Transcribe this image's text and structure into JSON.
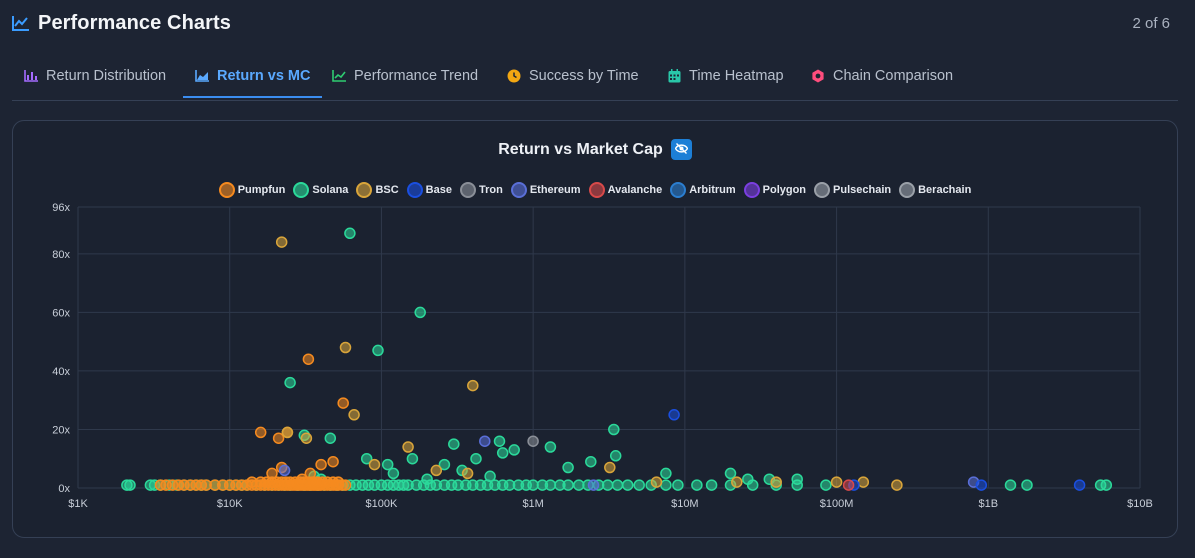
{
  "header": {
    "title": "Performance Charts",
    "page_count": "2 of 6",
    "icon": "trend-line-icon",
    "icon_color": "#3b9cff"
  },
  "tabs": [
    {
      "label": "Return Distribution",
      "icon": "bar-chart-icon",
      "color": "#a46bff",
      "active": false
    },
    {
      "label": "Return vs MC",
      "icon": "area-chart-icon",
      "color": "#5aa9ff",
      "active": true
    },
    {
      "label": "Performance Trend",
      "icon": "line-chart-icon",
      "color": "#2ecc71",
      "active": false
    },
    {
      "label": "Success by Time",
      "icon": "clock-icon",
      "color": "#f3a712",
      "active": false
    },
    {
      "label": "Time Heatmap",
      "icon": "calendar-icon",
      "color": "#29c7a8",
      "active": false
    },
    {
      "label": "Chain Comparison",
      "icon": "cog-icon",
      "color": "#ff4d7d",
      "active": false
    }
  ],
  "chart": {
    "title": "Return vs Market Cap",
    "toggle_icon": "eye-off-icon",
    "toggle_color": "#1d7fd6"
  },
  "legend": [
    {
      "name": "Pumpfun",
      "color": "#f58a1f"
    },
    {
      "name": "Solana",
      "color": "#2bd99a"
    },
    {
      "name": "BSC",
      "color": "#d9a53a"
    },
    {
      "name": "Base",
      "color": "#1a4fe0"
    },
    {
      "name": "Tron",
      "color": "#8a8f98"
    },
    {
      "name": "Ethereum",
      "color": "#5a6fd8"
    },
    {
      "name": "Avalanche",
      "color": "#d84a4a"
    },
    {
      "name": "Arbitrum",
      "color": "#2b7ed0"
    },
    {
      "name": "Polygon",
      "color": "#7b3fe0"
    },
    {
      "name": "Pulsechain",
      "color": "#9aa0a8"
    },
    {
      "name": "Berachain",
      "color": "#9aa0a8"
    }
  ],
  "chart_data": {
    "type": "scatter",
    "title": "Return vs Market Cap",
    "x_scale": "log",
    "xlim": [
      1000,
      10000000000
    ],
    "ylim": [
      0,
      96
    ],
    "x_ticks": [
      {
        "value": 1000,
        "label": "$1K"
      },
      {
        "value": 10000,
        "label": "$10K"
      },
      {
        "value": 100000,
        "label": "$100K"
      },
      {
        "value": 1000000,
        "label": "$1M"
      },
      {
        "value": 10000000,
        "label": "$10M"
      },
      {
        "value": 100000000,
        "label": "$100M"
      },
      {
        "value": 1000000000,
        "label": "$1B"
      },
      {
        "value": 10000000000,
        "label": "$10B"
      }
    ],
    "y_ticks": [
      {
        "value": 0,
        "label": "0x"
      },
      {
        "value": 20,
        "label": "20x"
      },
      {
        "value": 40,
        "label": "40x"
      },
      {
        "value": 60,
        "label": "60x"
      },
      {
        "value": 80,
        "label": "80x"
      },
      {
        "value": 96,
        "label": "96x"
      }
    ],
    "grid": true,
    "legend_position": "top-center",
    "series": [
      {
        "name": "Pumpfun",
        "color": "#f58a1f",
        "x": [
          3500,
          3800,
          4200,
          4600,
          5000,
          5500,
          6000,
          6500,
          7000,
          8000,
          9000,
          10000,
          11000,
          12000,
          13000,
          14000,
          15000,
          16000,
          17000,
          18000,
          19000,
          20000,
          21000,
          22000,
          23000,
          24000,
          25000,
          26000,
          27000,
          28000,
          29000,
          30000,
          31000,
          32000,
          33000,
          34000,
          35000,
          36000,
          37000,
          38000,
          39000,
          40000,
          42000,
          44000,
          46000,
          48000,
          50000,
          52000,
          55000,
          58000,
          14000,
          16000,
          17500,
          19000,
          20500,
          22000,
          23500,
          25000,
          27000,
          29000,
          31000,
          33000,
          35000,
          38000,
          41000,
          44000,
          48000,
          52000,
          19000,
          22000,
          21000,
          24000,
          16000,
          33000,
          56000,
          48000,
          30000,
          34000,
          40000,
          37000
        ],
        "y": [
          1,
          1,
          1,
          1,
          1,
          1,
          1,
          1,
          1,
          1,
          1,
          1,
          1,
          1,
          1,
          1,
          1,
          1,
          1,
          1,
          1,
          1,
          1,
          1,
          1,
          1,
          1,
          1,
          1,
          1,
          1,
          1,
          1,
          1,
          1,
          1,
          1,
          1,
          1,
          1,
          1,
          1,
          1,
          1,
          1,
          1,
          1,
          1,
          1,
          1,
          2,
          2,
          2,
          2,
          2,
          2,
          2,
          2,
          2,
          2,
          2,
          2,
          2,
          2,
          2,
          2,
          2,
          2,
          5,
          7,
          17,
          19,
          19,
          44,
          29,
          9,
          3,
          5,
          8,
          2
        ]
      },
      {
        "name": "Solana",
        "color": "#2bd99a",
        "x": [
          2100,
          2200,
          3000,
          3200,
          3500,
          4000,
          4500,
          5000,
          5500,
          6000,
          6500,
          7000,
          8000,
          9000,
          10000,
          11000,
          12000,
          13000,
          15000,
          17000,
          19000,
          21000,
          23000,
          25000,
          28000,
          31000,
          34000,
          38000,
          42000,
          46000,
          51000,
          56000,
          62000,
          68000,
          75000,
          82000,
          90000,
          100000,
          110000,
          120000,
          130000,
          140000,
          150000,
          170000,
          190000,
          210000,
          230000,
          260000,
          290000,
          320000,
          360000,
          400000,
          450000,
          500000,
          560000,
          630000,
          700000,
          800000,
          900000,
          1000000,
          1150000,
          1300000,
          1500000,
          1700000,
          2000000,
          2300000,
          2700000,
          3100000,
          3600000,
          4200000,
          5000000,
          6000000,
          7500000,
          9000000,
          12000000,
          15000000,
          20000000,
          28000000,
          40000000,
          55000000,
          85000000,
          1400000000,
          1800000000,
          5500000000,
          6000000000,
          26000000,
          36000000,
          55000000,
          110000,
          260000,
          160000,
          340000,
          420000,
          520000,
          300000,
          630000,
          1300000,
          2400000,
          3400000,
          3500000,
          25000,
          31000,
          46000,
          80000,
          95000,
          62000,
          180000,
          36000,
          120000,
          200000,
          600000,
          750000,
          1700000,
          7500000,
          20000000,
          40000
        ],
        "y": [
          1,
          1,
          1,
          1,
          1,
          1,
          1,
          1,
          1,
          1,
          1,
          1,
          1,
          1,
          1,
          1,
          1,
          1,
          1,
          1,
          1,
          1,
          1,
          1,
          1,
          1,
          1,
          1,
          1,
          1,
          1,
          1,
          1,
          1,
          1,
          1,
          1,
          1,
          1,
          1,
          1,
          1,
          1,
          1,
          1,
          1,
          1,
          1,
          1,
          1,
          1,
          1,
          1,
          1,
          1,
          1,
          1,
          1,
          1,
          1,
          1,
          1,
          1,
          1,
          1,
          1,
          1,
          1,
          1,
          1,
          1,
          1,
          1,
          1,
          1,
          1,
          1,
          1,
          1,
          1,
          1,
          1,
          1,
          1,
          1,
          3,
          3,
          3,
          8,
          8,
          10,
          6,
          10,
          4,
          15,
          12,
          14,
          9,
          20,
          11,
          36,
          18,
          17,
          10,
          47,
          87,
          60,
          4,
          5,
          3,
          16,
          13,
          7,
          5,
          5,
          3
        ],
        "_label": ""
      },
      {
        "name": "BSC",
        "color": "#d9a53a",
        "x": [
          22000,
          58000,
          400000,
          24000,
          66000,
          32000,
          150000,
          90000,
          230000,
          370000,
          3200000,
          6500000,
          22000000,
          40000000,
          100000000,
          150000000,
          250000000
        ],
        "y": [
          84,
          48,
          35,
          19,
          25,
          17,
          14,
          8,
          6,
          5,
          7,
          2,
          2,
          2,
          2,
          2,
          1
        ]
      },
      {
        "name": "Base",
        "color": "#1a4fe0",
        "x": [
          8500000,
          130000000,
          900000000,
          4000000000
        ],
        "y": [
          25,
          1,
          1,
          1
        ]
      },
      {
        "name": "Tron",
        "color": "#8a8f98",
        "x": [
          1000000
        ],
        "y": [
          16
        ]
      },
      {
        "name": "Ethereum",
        "color": "#5a6fd8",
        "x": [
          480000,
          23000,
          800000000,
          2500000
        ],
        "y": [
          16,
          6,
          2,
          1
        ]
      },
      {
        "name": "Avalanche",
        "color": "#d84a4a",
        "x": [
          120000000
        ],
        "y": [
          1
        ]
      },
      {
        "name": "Arbitrum",
        "color": "#2b7ed0",
        "x": [],
        "y": []
      },
      {
        "name": "Polygon",
        "color": "#7b3fe0",
        "x": [],
        "y": []
      },
      {
        "name": "Pulsechain",
        "color": "#9aa0a8",
        "x": [],
        "y": []
      },
      {
        "name": "Berachain",
        "color": "#9aa0a8",
        "x": [],
        "y": []
      }
    ]
  }
}
